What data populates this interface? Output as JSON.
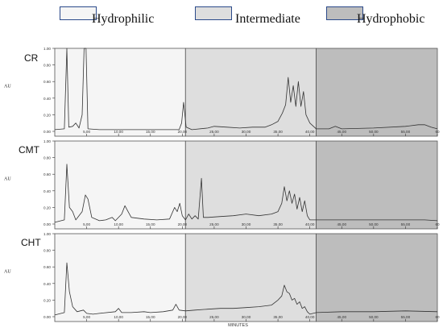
{
  "legend": [
    {
      "label": "Hydrophilic",
      "color": "#f5f5f5"
    },
    {
      "label": "Intermediate",
      "color": "#dedede"
    },
    {
      "label": "Hydrophobic",
      "color": "#bdbdbd"
    }
  ],
  "chart_data": {
    "type": "line",
    "xlabel": "MINUTES",
    "ylabel": "AU",
    "xlim": [
      0,
      60
    ],
    "ylim": [
      0,
      1.0
    ],
    "x_ticks": [
      "5,00",
      "10,00",
      "15,00",
      "20,00",
      "25,00",
      "30,00",
      "35,00",
      "40,00",
      "45,00",
      "50,00",
      "55,00",
      "60"
    ],
    "y_ticks": [
      "0.00",
      "0.20",
      "0.40",
      "0.60",
      "0.80",
      "1.00"
    ],
    "regions": [
      {
        "name": "Hydrophilic",
        "from": 0,
        "to": 20.5
      },
      {
        "name": "Intermediate",
        "from": 20.5,
        "to": 41
      },
      {
        "name": "Hydrophobic",
        "from": 41,
        "to": 60
      }
    ],
    "series": [
      {
        "name": "CR",
        "points": [
          [
            0,
            0.02
          ],
          [
            1.5,
            0.03
          ],
          [
            1.9,
            1.0
          ],
          [
            2.2,
            0.05
          ],
          [
            2.8,
            0.06
          ],
          [
            3.3,
            0.1
          ],
          [
            3.8,
            0.04
          ],
          [
            4.3,
            0.2
          ],
          [
            4.6,
            1.0
          ],
          [
            4.9,
            1.0
          ],
          [
            5.2,
            0.03
          ],
          [
            7,
            0.02
          ],
          [
            10,
            0.02
          ],
          [
            15,
            0.02
          ],
          [
            19.5,
            0.02
          ],
          [
            19.9,
            0.1
          ],
          [
            20.2,
            0.35
          ],
          [
            20.6,
            0.05
          ],
          [
            21.5,
            0.02
          ],
          [
            24,
            0.04
          ],
          [
            25,
            0.06
          ],
          [
            27,
            0.05
          ],
          [
            29,
            0.04
          ],
          [
            31,
            0.05
          ],
          [
            33,
            0.05
          ],
          [
            34,
            0.08
          ],
          [
            35,
            0.12
          ],
          [
            35.7,
            0.22
          ],
          [
            36.2,
            0.32
          ],
          [
            36.6,
            0.65
          ],
          [
            37,
            0.35
          ],
          [
            37.4,
            0.55
          ],
          [
            37.8,
            0.3
          ],
          [
            38.2,
            0.6
          ],
          [
            38.6,
            0.3
          ],
          [
            39,
            0.48
          ],
          [
            39.4,
            0.2
          ],
          [
            40,
            0.1
          ],
          [
            41,
            0.03
          ],
          [
            43,
            0.03
          ],
          [
            44,
            0.06
          ],
          [
            45,
            0.03
          ],
          [
            50,
            0.04
          ],
          [
            55,
            0.06
          ],
          [
            57,
            0.08
          ],
          [
            58,
            0.08
          ],
          [
            59,
            0.05
          ],
          [
            60,
            0.03
          ]
        ]
      },
      {
        "name": "CMT",
        "points": [
          [
            0,
            0.02
          ],
          [
            1.5,
            0.05
          ],
          [
            1.9,
            0.72
          ],
          [
            2.3,
            0.2
          ],
          [
            2.8,
            0.15
          ],
          [
            3.3,
            0.05
          ],
          [
            4.3,
            0.15
          ],
          [
            4.8,
            0.35
          ],
          [
            5.2,
            0.3
          ],
          [
            5.8,
            0.08
          ],
          [
            7,
            0.04
          ],
          [
            8,
            0.05
          ],
          [
            9,
            0.08
          ],
          [
            9.5,
            0.04
          ],
          [
            10.5,
            0.12
          ],
          [
            11,
            0.22
          ],
          [
            11.5,
            0.15
          ],
          [
            12,
            0.08
          ],
          [
            14,
            0.06
          ],
          [
            16,
            0.05
          ],
          [
            18,
            0.06
          ],
          [
            18.8,
            0.2
          ],
          [
            19.2,
            0.15
          ],
          [
            19.6,
            0.25
          ],
          [
            20,
            0.1
          ],
          [
            20.5,
            0.05
          ],
          [
            21,
            0.12
          ],
          [
            21.5,
            0.06
          ],
          [
            22,
            0.1
          ],
          [
            22.5,
            0.06
          ],
          [
            23,
            0.55
          ],
          [
            23.3,
            0.08
          ],
          [
            24,
            0.08
          ],
          [
            26,
            0.09
          ],
          [
            28,
            0.1
          ],
          [
            30,
            0.12
          ],
          [
            32,
            0.1
          ],
          [
            34,
            0.12
          ],
          [
            35,
            0.15
          ],
          [
            35.6,
            0.25
          ],
          [
            36,
            0.45
          ],
          [
            36.4,
            0.28
          ],
          [
            36.8,
            0.4
          ],
          [
            37.2,
            0.25
          ],
          [
            37.6,
            0.36
          ],
          [
            38,
            0.18
          ],
          [
            38.4,
            0.32
          ],
          [
            38.8,
            0.15
          ],
          [
            39.2,
            0.28
          ],
          [
            39.6,
            0.1
          ],
          [
            40,
            0.05
          ],
          [
            41,
            0.05
          ],
          [
            45,
            0.05
          ],
          [
            50,
            0.05
          ],
          [
            55,
            0.05
          ],
          [
            58,
            0.05
          ],
          [
            60,
            0.04
          ]
        ]
      },
      {
        "name": "CHT",
        "points": [
          [
            0,
            0.02
          ],
          [
            1.5,
            0.05
          ],
          [
            1.9,
            0.65
          ],
          [
            2.3,
            0.3
          ],
          [
            2.8,
            0.12
          ],
          [
            3.5,
            0.06
          ],
          [
            4.5,
            0.08
          ],
          [
            5,
            0.04
          ],
          [
            6,
            0.03
          ],
          [
            7,
            0.04
          ],
          [
            9.5,
            0.06
          ],
          [
            10,
            0.1
          ],
          [
            10.5,
            0.05
          ],
          [
            12,
            0.05
          ],
          [
            14,
            0.06
          ],
          [
            15,
            0.05
          ],
          [
            17,
            0.06
          ],
          [
            18.5,
            0.08
          ],
          [
            19,
            0.15
          ],
          [
            19.5,
            0.08
          ],
          [
            20.5,
            0.07
          ],
          [
            22,
            0.08
          ],
          [
            24,
            0.09
          ],
          [
            26,
            0.1
          ],
          [
            28,
            0.1
          ],
          [
            30,
            0.11
          ],
          [
            32,
            0.12
          ],
          [
            33,
            0.13
          ],
          [
            34,
            0.14
          ],
          [
            35,
            0.2
          ],
          [
            35.6,
            0.25
          ],
          [
            36,
            0.38
          ],
          [
            36.4,
            0.3
          ],
          [
            36.8,
            0.28
          ],
          [
            37.2,
            0.2
          ],
          [
            37.6,
            0.22
          ],
          [
            38,
            0.15
          ],
          [
            38.4,
            0.18
          ],
          [
            38.8,
            0.1
          ],
          [
            39.2,
            0.12
          ],
          [
            39.6,
            0.06
          ],
          [
            40,
            0.03
          ],
          [
            41,
            0.05
          ],
          [
            45,
            0.06
          ],
          [
            50,
            0.06
          ],
          [
            55,
            0.07
          ],
          [
            60,
            0.06
          ]
        ]
      }
    ]
  }
}
